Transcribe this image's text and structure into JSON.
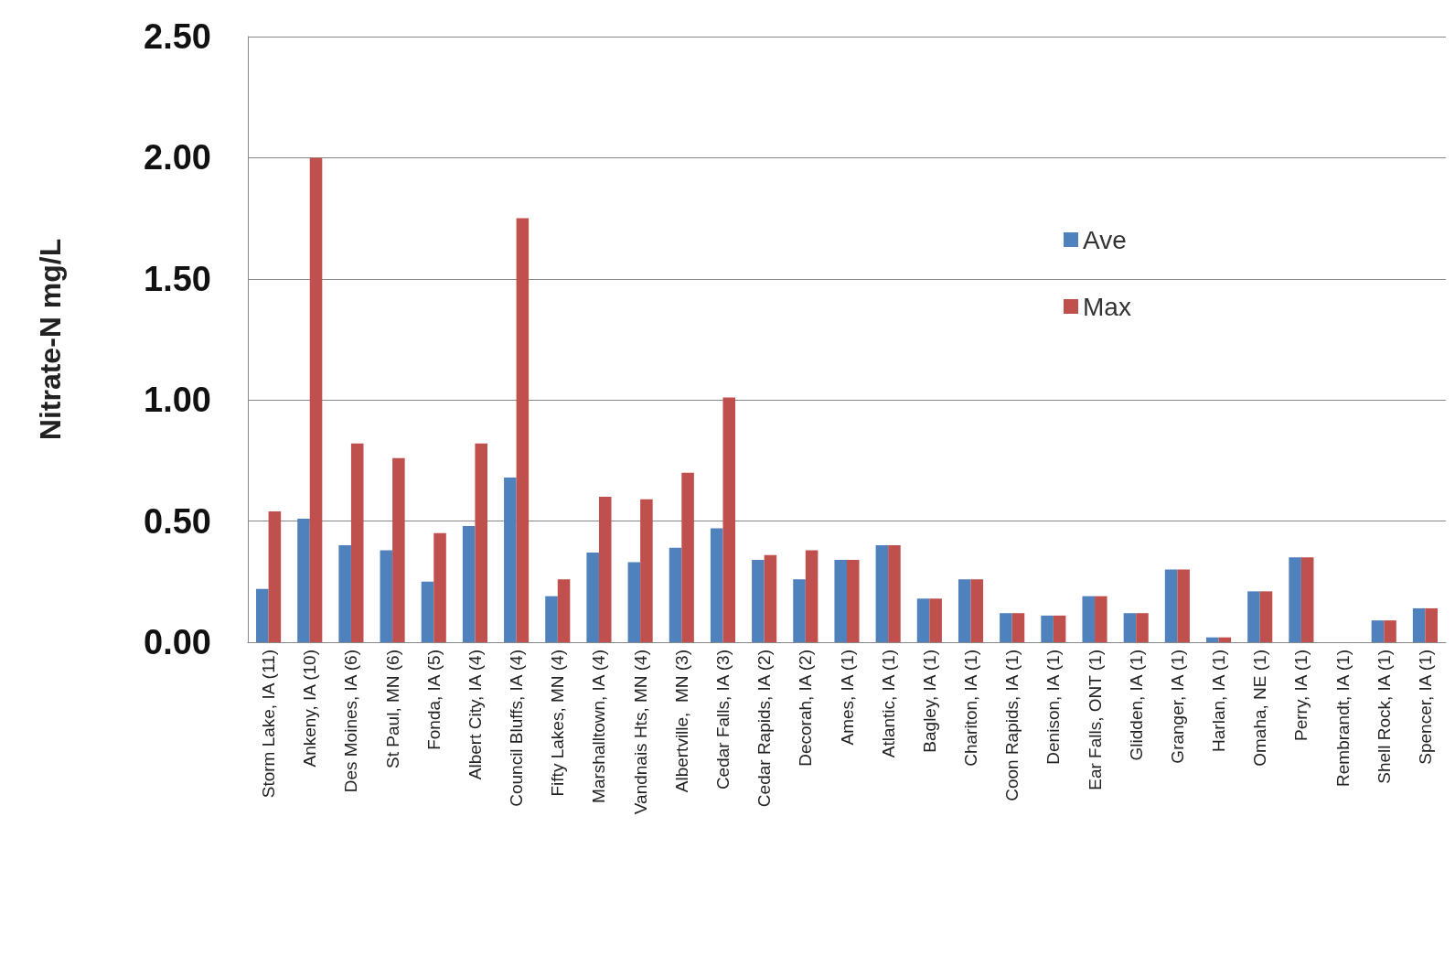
{
  "chart_data": {
    "type": "bar",
    "ylabel": "Nitrate-N mg/L",
    "categories": [
      "Storm Lake, IA (11)",
      "Ankeny, IA (10)",
      "Des Moines, IA (6)",
      "St Paul, MN (6)",
      "Fonda, IA (5)",
      "Albert City, IA (4)",
      "Council Bluffs, IA (4)",
      "Fifty Lakes, MN (4)",
      "Marshalltown, IA (4)",
      "Vandnais Hts, MN (4)",
      "Albertville,  MN (3)",
      "Cedar Falls, IA (3)",
      "Cedar Rapids, IA (2)",
      "Decorah, IA (2)",
      "Ames, IA (1)",
      "Atlantic, IA (1)",
      "Bagley, IA (1)",
      "Chariton, IA (1)",
      "Coon Rapids, IA (1)",
      "Denison, IA (1)",
      "Ear Falls, ONT (1)",
      "Glidden, IA (1)",
      "Granger, IA (1)",
      "Harlan, IA (1)",
      "Omaha, NE (1)",
      "Perry, IA (1)",
      "Rembrandt, IA (1)",
      "Shell Rock, IA (1)",
      "Spencer, IA (1)"
    ],
    "series": [
      {
        "name": "Ave",
        "color": "#4f81bd",
        "values": [
          0.22,
          0.51,
          0.4,
          0.38,
          0.25,
          0.48,
          0.68,
          0.19,
          0.37,
          0.33,
          0.39,
          0.47,
          0.34,
          0.26,
          0.34,
          0.4,
          0.18,
          0.26,
          0.12,
          0.11,
          0.19,
          0.12,
          0.3,
          0.02,
          0.21,
          0.35,
          0,
          0.09,
          0.14
        ]
      },
      {
        "name": "Max",
        "color": "#c0504d",
        "values": [
          0.54,
          2.0,
          0.82,
          0.76,
          0.45,
          0.82,
          1.75,
          0.26,
          0.6,
          0.59,
          0.7,
          1.01,
          0.36,
          0.38,
          0.34,
          0.4,
          0.18,
          0.26,
          0.12,
          0.11,
          0.19,
          0.12,
          0.3,
          0.02,
          0.21,
          0.35,
          0,
          0.09,
          0.14
        ]
      }
    ],
    "ylim": [
      0,
      2.5
    ],
    "yticks": [
      {
        "value": 0,
        "label": "0.00"
      },
      {
        "value": 0.5,
        "label": "0.50"
      },
      {
        "value": 1,
        "label": "1.00"
      },
      {
        "value": 1.5,
        "label": "1.50"
      },
      {
        "value": 2,
        "label": "2.00"
      },
      {
        "value": 2.5,
        "label": "2.50"
      }
    ],
    "grid": "y",
    "legend": "top right"
  }
}
